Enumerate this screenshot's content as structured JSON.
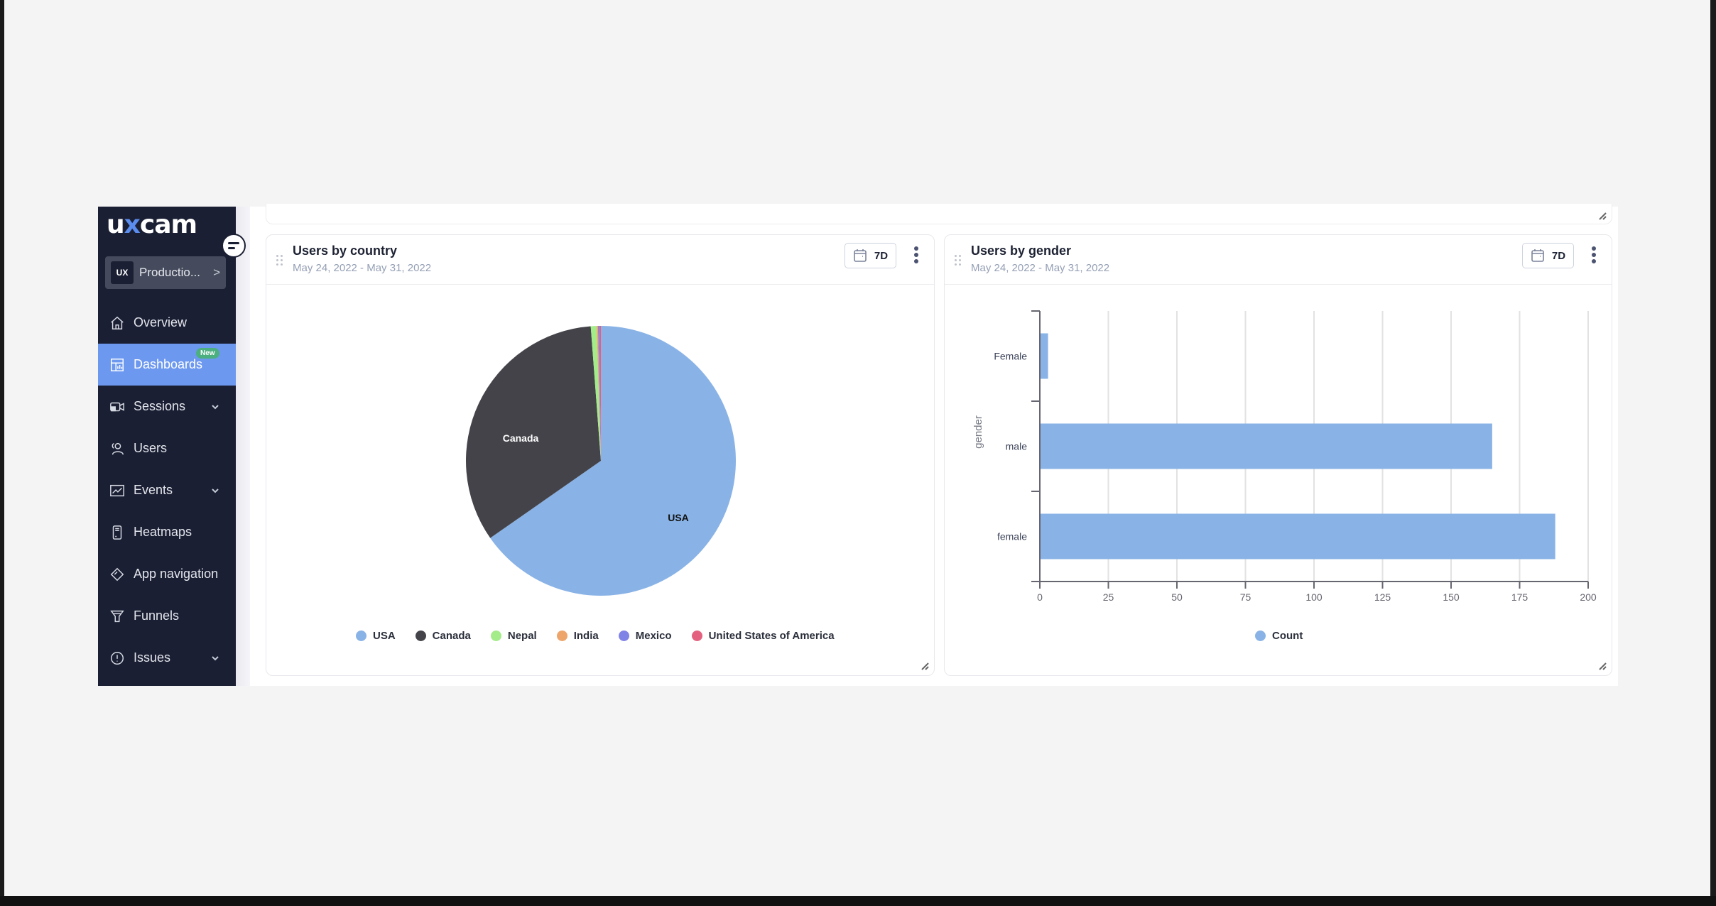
{
  "sidebar": {
    "logo_left": "ux",
    "logo_x": "",
    "logo_right": "cam",
    "project": {
      "badge": "UX",
      "name": "Productio...",
      "chevron": ">"
    },
    "new_badge": "New",
    "items": [
      {
        "label": "Overview",
        "icon": "home-icon",
        "active": false,
        "expandable": false
      },
      {
        "label": "Dashboards",
        "icon": "dashboard-icon",
        "active": true,
        "expandable": false,
        "badge": "New"
      },
      {
        "label": "Sessions",
        "icon": "session-video-icon",
        "active": false,
        "expandable": true
      },
      {
        "label": "Users",
        "icon": "users-icon",
        "active": false,
        "expandable": false
      },
      {
        "label": "Events",
        "icon": "line-chart-icon",
        "active": false,
        "expandable": true
      },
      {
        "label": "Heatmaps",
        "icon": "phone-heatmap-icon",
        "active": false,
        "expandable": false
      },
      {
        "label": "App navigation",
        "icon": "navigation-icon",
        "active": false,
        "expandable": false
      },
      {
        "label": "Funnels",
        "icon": "funnel-icon",
        "active": false,
        "expandable": false
      },
      {
        "label": "Issues",
        "icon": "alert-circle-icon",
        "active": false,
        "expandable": true
      }
    ]
  },
  "cards": [
    {
      "title": "Users by country",
      "date_range": "May 24, 2022 - May 31, 2022",
      "range_button": "7D"
    },
    {
      "title": "Users by gender",
      "date_range": "May 24, 2022 - May 31, 2022",
      "range_button": "7D"
    }
  ],
  "colors": {
    "sidebar_bg": "#1b1f33",
    "active_item": "#6c98ef",
    "accent": "#5a8dee",
    "bar": "#89b3e6"
  },
  "chart_data": [
    {
      "type": "pie",
      "title": "Users by country",
      "categories": [
        "USA",
        "Canada",
        "Nepal",
        "India",
        "Mexico",
        "United States of America"
      ],
      "values": [
        65.3,
        33.5,
        0.7,
        0.15,
        0.15,
        0.2
      ],
      "value_unit": "approx. % share",
      "colors": [
        "#89b3e6",
        "#444349",
        "#a4eb8a",
        "#eda56b",
        "#8083e6",
        "#e3617f"
      ],
      "slice_labels": [
        "USA",
        "Canada"
      ],
      "legend_position": "bottom"
    },
    {
      "type": "bar",
      "orientation": "horizontal",
      "title": "Users by gender",
      "categories": [
        "Female",
        "male",
        "female"
      ],
      "series": [
        {
          "name": "Count",
          "values": [
            3,
            165,
            188
          ],
          "color": "#89b3e6"
        }
      ],
      "xlabel": "",
      "ylabel": "gender",
      "xlim": [
        0,
        200
      ],
      "xticks": [
        "0",
        "25",
        "50",
        "75",
        "100",
        "125",
        "150",
        "175",
        "200"
      ],
      "grid": true,
      "legend_position": "bottom"
    }
  ]
}
